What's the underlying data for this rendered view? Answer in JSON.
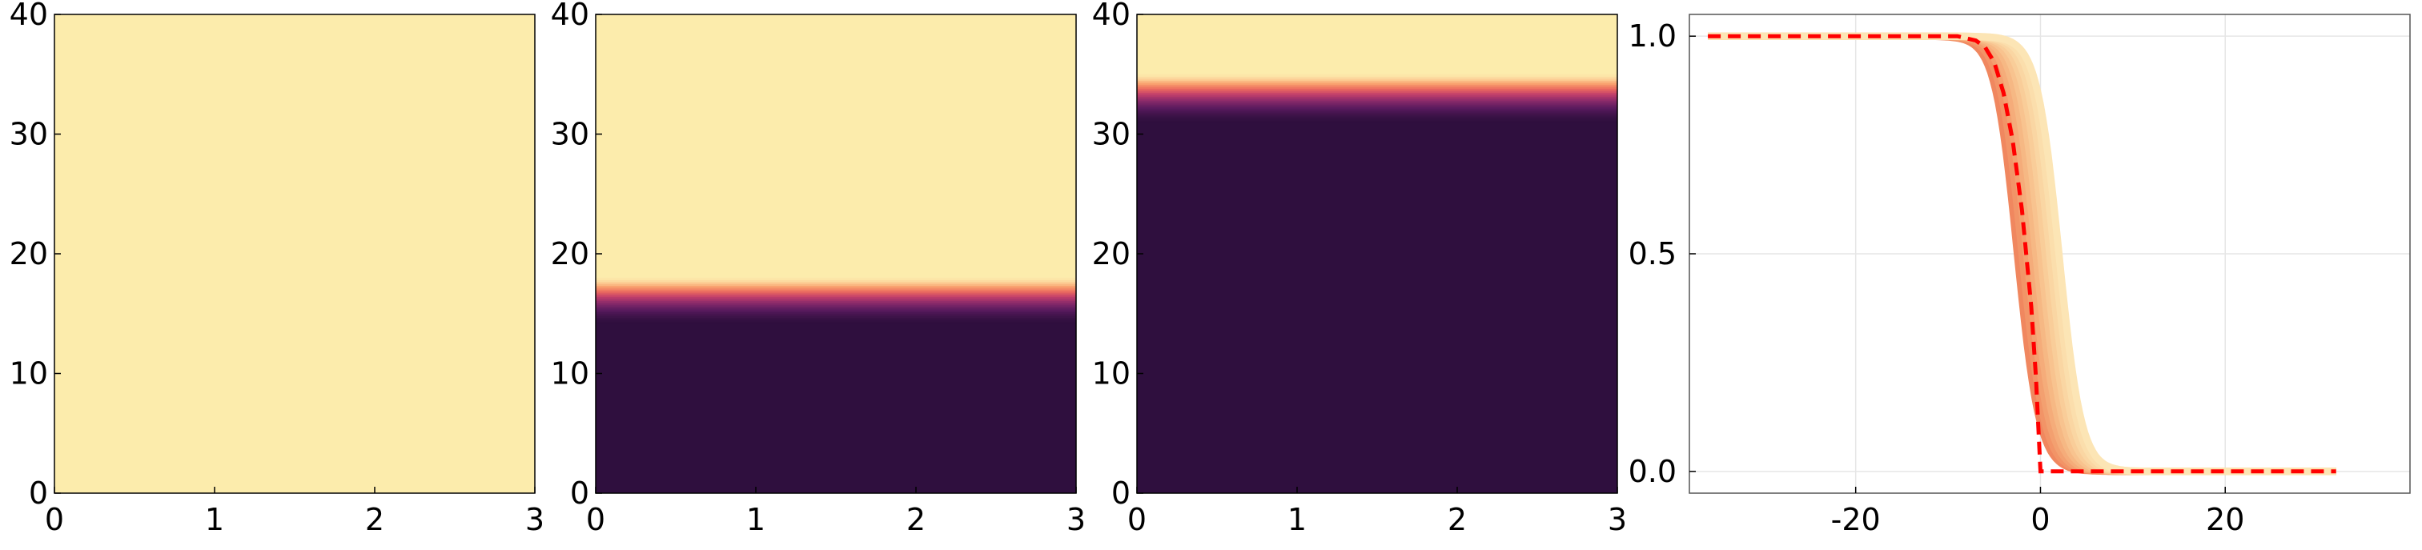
{
  "chart_data": [
    {
      "type": "heatmap",
      "xlim": [
        0,
        3
      ],
      "ylim": [
        0,
        40
      ],
      "x_ticks": [
        "0",
        "1",
        "2",
        "3"
      ],
      "y_ticks": [
        "0",
        "10",
        "20",
        "30",
        "40"
      ],
      "front_y": null,
      "transition_y": null,
      "colors": {
        "upper": "#fcecac",
        "lower": "#2f0f3e"
      }
    },
    {
      "type": "heatmap",
      "xlim": [
        0,
        3
      ],
      "ylim": [
        0,
        40
      ],
      "x_ticks": [
        "0",
        "1",
        "2",
        "3"
      ],
      "y_ticks": [
        "0",
        "10",
        "20",
        "30",
        "40"
      ],
      "front_y": 14.2,
      "transition_y": [
        14.2,
        18.0
      ],
      "colors": {
        "upper": "#fcecac",
        "lower": "#2f0f3e"
      }
    },
    {
      "type": "heatmap",
      "xlim": [
        0,
        3
      ],
      "ylim": [
        0,
        40
      ],
      "x_ticks": [
        "0",
        "1",
        "2",
        "3"
      ],
      "y_ticks": [
        "0",
        "10",
        "20",
        "30",
        "40"
      ],
      "front_y": 31.0,
      "transition_y": [
        31.0,
        35.0
      ],
      "colors": {
        "upper": "#fcecac",
        "lower": "#2f0f3e"
      }
    },
    {
      "type": "line",
      "xlim": [
        -38,
        40
      ],
      "ylim": [
        -0.05,
        1.05
      ],
      "x_ticks": [
        -20,
        0,
        20
      ],
      "y_ticks": [
        0.0,
        0.5,
        1.0
      ],
      "x_tick_labels": [
        "-20",
        "0",
        "20"
      ],
      "y_tick_labels": [
        "0.0",
        "0.5",
        "1.0"
      ],
      "grid": true,
      "profiles": {
        "midpoints": [
          -2.5,
          -2.0,
          -1.5,
          -1.0,
          -0.5,
          0.0,
          0.5,
          1.0,
          1.5,
          2.0
        ],
        "width": 1.2,
        "colors": [
          "#f0875f",
          "#f29467",
          "#f3a070",
          "#f5ac7a",
          "#f6b884",
          "#f8c38f",
          "#f9cd99",
          "#fad6a3",
          "#fbdeac",
          "#fce5b5"
        ]
      },
      "reference": {
        "x": [
          -36,
          -30,
          -25,
          -20,
          -15,
          -12,
          -10,
          -9,
          -8,
          -7,
          -6,
          -5,
          -4,
          -3,
          -2,
          -1,
          -0.5,
          0,
          0.5,
          1,
          2,
          5,
          10,
          15,
          20,
          25,
          32
        ],
        "y": [
          1.0,
          1.0,
          1.0,
          1.0,
          1.0,
          1.0,
          1.0,
          1.0,
          0.995,
          0.99,
          0.975,
          0.94,
          0.87,
          0.76,
          0.6,
          0.38,
          0.22,
          0.0,
          0.0,
          0.0,
          0.0,
          0.0,
          0.0,
          0.0,
          0.0,
          0.0,
          0.0
        ],
        "color": "#ff0000",
        "style": "dashed"
      }
    }
  ]
}
